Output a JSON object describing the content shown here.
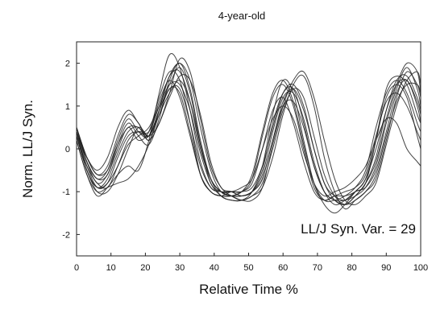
{
  "chart_data": {
    "type": "line",
    "title": "4-year-old",
    "xlabel": "Relative Time %",
    "ylabel": "Norm. LL/J Syn.",
    "xlim": [
      0,
      100
    ],
    "ylim": [
      -2.5,
      2.5
    ],
    "xticks": [
      0,
      10,
      20,
      30,
      40,
      50,
      60,
      70,
      80,
      90,
      100
    ],
    "yticks": [
      -2,
      -1,
      0,
      1,
      2
    ],
    "annotation": "LL/J Syn. Var. = 29",
    "grid": false,
    "line_color": "#222222",
    "series": [
      {
        "x": [
          0,
          3,
          6,
          9,
          12,
          15,
          18,
          21,
          24,
          27,
          30,
          33,
          36,
          39,
          42,
          45,
          48,
          51,
          54,
          57,
          60,
          63,
          66,
          69,
          72,
          75,
          78,
          81,
          84,
          87,
          90,
          93,
          96,
          99,
          100
        ],
        "y": [
          0.5,
          -0.3,
          -0.8,
          -0.6,
          0.0,
          0.5,
          0.2,
          0.4,
          1.2,
          1.8,
          1.6,
          0.6,
          -0.6,
          -1.0,
          -1.1,
          -1.0,
          -1.0,
          -0.7,
          0.3,
          1.2,
          1.5,
          1.0,
          0.0,
          -0.9,
          -1.2,
          -1.1,
          -1.1,
          -1.0,
          -0.8,
          0.2,
          1.4,
          1.7,
          1.5,
          0.8,
          0.6
        ]
      },
      {
        "x": [
          0,
          3,
          6,
          9,
          12,
          15,
          18,
          21,
          24,
          27,
          30,
          33,
          36,
          39,
          42,
          45,
          48,
          51,
          54,
          57,
          60,
          63,
          66,
          69,
          72,
          75,
          78,
          81,
          84,
          87,
          90,
          93,
          96,
          99,
          100
        ],
        "y": [
          0.4,
          -0.4,
          -0.9,
          -0.8,
          -0.2,
          0.3,
          0.4,
          0.3,
          0.9,
          1.5,
          1.9,
          1.3,
          0.1,
          -0.8,
          -1.0,
          -1.1,
          -1.1,
          -1.0,
          -0.5,
          0.6,
          1.3,
          1.4,
          0.6,
          -0.4,
          -1.0,
          -1.2,
          -1.3,
          -1.1,
          -0.8,
          -0.2,
          0.9,
          1.6,
          1.7,
          1.2,
          0.9
        ]
      },
      {
        "x": [
          0,
          3,
          6,
          9,
          12,
          15,
          18,
          21,
          24,
          27,
          30,
          33,
          36,
          39,
          42,
          45,
          48,
          51,
          54,
          57,
          60,
          63,
          66,
          69,
          72,
          75,
          78,
          81,
          84,
          87,
          90,
          93,
          96,
          99,
          100
        ],
        "y": [
          0.3,
          -0.5,
          -1.0,
          -1.0,
          -0.6,
          0.0,
          0.5,
          0.3,
          0.6,
          1.3,
          2.1,
          1.8,
          0.7,
          -0.4,
          -0.9,
          -1.1,
          -1.2,
          -1.1,
          -0.9,
          -0.2,
          0.8,
          1.5,
          1.7,
          1.0,
          -0.2,
          -1.0,
          -1.4,
          -1.2,
          -1.0,
          -0.7,
          0.2,
          1.2,
          1.8,
          1.5,
          1.2
        ]
      },
      {
        "x": [
          0,
          3,
          6,
          9,
          12,
          15,
          18,
          21,
          24,
          27,
          30,
          33,
          36,
          39,
          42,
          45,
          48,
          51,
          54,
          57,
          60,
          63,
          66,
          69,
          72,
          75,
          78,
          81,
          84,
          87,
          90,
          93,
          96,
          99,
          100
        ],
        "y": [
          0.5,
          -0.2,
          -0.6,
          -0.4,
          0.3,
          0.8,
          0.6,
          0.2,
          0.8,
          1.4,
          1.3,
          0.4,
          -0.6,
          -1.0,
          -1.1,
          -1.1,
          -1.0,
          -0.8,
          0.0,
          0.9,
          1.2,
          0.6,
          -0.3,
          -1.0,
          -1.2,
          -1.1,
          -1.0,
          -0.9,
          -0.6,
          0.3,
          1.1,
          1.3,
          1.0,
          0.4,
          0.2
        ]
      },
      {
        "x": [
          0,
          3,
          6,
          9,
          12,
          15,
          18,
          21,
          24,
          27,
          30,
          33,
          36,
          39,
          42,
          45,
          48,
          51,
          54,
          57,
          60,
          63,
          66,
          69,
          72,
          75,
          78,
          81,
          84,
          87,
          90,
          93,
          96,
          99,
          100
        ],
        "y": [
          0.2,
          -0.6,
          -1.1,
          -0.9,
          -0.6,
          -0.4,
          -0.5,
          0.2,
          1.3,
          2.2,
          1.9,
          0.9,
          -0.3,
          -0.9,
          -1.0,
          -1.0,
          -1.1,
          -1.0,
          -0.6,
          0.4,
          1.2,
          1.3,
          0.7,
          -0.3,
          -1.0,
          -1.3,
          -1.2,
          -1.0,
          -0.9,
          -0.5,
          0.4,
          1.3,
          1.6,
          1.0,
          0.6
        ]
      },
      {
        "x": [
          0,
          3,
          6,
          9,
          12,
          15,
          18,
          21,
          24,
          27,
          30,
          33,
          36,
          39,
          42,
          45,
          48,
          51,
          54,
          57,
          60,
          63,
          66,
          69,
          72,
          75,
          78,
          81,
          84,
          87,
          90,
          93,
          96,
          99,
          100
        ],
        "y": [
          0.4,
          -0.3,
          -0.7,
          -0.6,
          0.1,
          0.6,
          0.3,
          0.1,
          0.7,
          1.6,
          2.0,
          1.4,
          0.2,
          -0.7,
          -1.1,
          -1.2,
          -1.2,
          -1.0,
          -0.4,
          0.8,
          1.6,
          1.3,
          0.2,
          -0.8,
          -1.3,
          -1.5,
          -1.3,
          -1.0,
          -0.7,
          0.2,
          1.2,
          1.5,
          1.2,
          0.3,
          0.0
        ]
      },
      {
        "x": [
          0,
          3,
          6,
          9,
          12,
          15,
          18,
          21,
          24,
          27,
          30,
          33,
          36,
          39,
          42,
          45,
          48,
          51,
          54,
          57,
          60,
          63,
          66,
          69,
          72,
          75,
          78,
          81,
          84,
          87,
          90,
          93,
          96,
          99,
          100
        ],
        "y": [
          0.3,
          -0.4,
          -0.8,
          -0.9,
          -0.4,
          0.2,
          0.4,
          0.4,
          1.0,
          1.7,
          1.8,
          1.1,
          0.0,
          -0.7,
          -1.0,
          -1.1,
          -1.2,
          -1.2,
          -0.9,
          0.1,
          1.0,
          1.6,
          1.8,
          1.2,
          0.2,
          -0.7,
          -1.2,
          -1.3,
          -1.1,
          -0.8,
          0.1,
          1.0,
          1.6,
          1.8,
          1.5
        ]
      },
      {
        "x": [
          0,
          3,
          6,
          9,
          12,
          15,
          18,
          21,
          24,
          27,
          30,
          33,
          36,
          39,
          42,
          45,
          48,
          51,
          54,
          57,
          60,
          63,
          66,
          69,
          72,
          75,
          78,
          81,
          84,
          87,
          90,
          93,
          96,
          99,
          100
        ],
        "y": [
          0.4,
          -0.5,
          -0.9,
          -0.7,
          -0.1,
          0.4,
          0.5,
          0.2,
          0.6,
          1.2,
          1.7,
          1.6,
          0.8,
          -0.3,
          -0.9,
          -1.0,
          -1.1,
          -1.0,
          -0.7,
          0.2,
          1.0,
          1.1,
          0.5,
          -0.4,
          -1.0,
          -1.2,
          -1.2,
          -1.1,
          -0.9,
          -0.4,
          0.6,
          1.4,
          1.9,
          1.4,
          1.0
        ]
      },
      {
        "x": [
          0,
          3,
          6,
          9,
          12,
          15,
          18,
          21,
          24,
          27,
          30,
          33,
          36,
          39,
          42,
          45,
          48,
          51,
          54,
          57,
          60,
          63,
          66,
          69,
          72,
          75,
          78,
          81,
          84,
          87,
          90,
          93,
          96,
          99,
          100
        ],
        "y": [
          0.5,
          -0.3,
          -0.7,
          -0.5,
          0.2,
          0.7,
          0.4,
          0.3,
          1.1,
          1.6,
          1.2,
          0.3,
          -0.6,
          -1.0,
          -1.1,
          -1.1,
          -1.0,
          -0.6,
          0.4,
          1.3,
          1.6,
          1.1,
          0.1,
          -0.8,
          -1.2,
          -1.2,
          -1.1,
          -0.9,
          -0.5,
          0.5,
          1.3,
          1.6,
          1.3,
          0.6,
          0.4
        ]
      },
      {
        "x": [
          0,
          3,
          6,
          9,
          12,
          15,
          18,
          21,
          24,
          27,
          30,
          33,
          36,
          39,
          42,
          45,
          48,
          51,
          54,
          57,
          60,
          63,
          66,
          69,
          72,
          75,
          78,
          81,
          84,
          87,
          90,
          93,
          96,
          99,
          100
        ],
        "y": [
          0.3,
          -0.5,
          -0.9,
          -0.8,
          -0.4,
          0.1,
          0.3,
          0.5,
          1.0,
          1.5,
          1.5,
          0.9,
          -0.1,
          -0.8,
          -1.1,
          -1.2,
          -1.2,
          -1.1,
          -0.8,
          0.0,
          0.9,
          1.4,
          1.2,
          0.3,
          -0.6,
          -1.1,
          -1.3,
          -1.2,
          -1.0,
          -0.6,
          0.3,
          1.1,
          1.5,
          1.5,
          1.3
        ]
      },
      {
        "x": [
          0,
          3,
          6,
          9,
          12,
          15,
          18,
          21,
          24,
          27,
          30,
          33,
          36,
          39,
          42,
          45,
          48,
          51,
          54,
          57,
          60,
          63,
          66,
          69,
          72,
          75,
          78,
          81,
          84,
          87,
          90,
          93,
          96,
          99,
          100
        ],
        "y": [
          0.4,
          -0.2,
          -0.5,
          -0.2,
          0.5,
          0.9,
          0.6,
          0.3,
          0.9,
          1.4,
          1.4,
          0.6,
          -0.4,
          -0.9,
          -1.0,
          -1.0,
          -0.9,
          -0.7,
          0.0,
          0.7,
          1.0,
          0.7,
          -0.1,
          -0.8,
          -1.1,
          -1.0,
          -0.9,
          -0.7,
          -0.4,
          0.2,
          0.7,
          0.6,
          0.0,
          -0.3,
          -0.4
        ]
      },
      {
        "x": [
          0,
          3,
          6,
          9,
          12,
          15,
          18,
          21,
          24,
          27,
          30,
          33,
          36,
          39,
          42,
          45,
          48,
          51,
          54,
          57,
          60,
          63,
          66,
          69,
          72,
          75,
          78,
          81,
          84,
          87,
          90,
          93,
          96,
          99,
          100
        ],
        "y": [
          0.2,
          -0.6,
          -1.0,
          -0.9,
          -0.8,
          -0.7,
          -0.4,
          0.1,
          0.9,
          1.7,
          2.0,
          1.6,
          0.5,
          -0.5,
          -1.0,
          -1.1,
          -1.1,
          -1.0,
          -0.7,
          0.2,
          1.1,
          1.4,
          0.9,
          0.0,
          -0.8,
          -1.2,
          -1.3,
          -1.1,
          -0.8,
          -0.3,
          0.7,
          1.5,
          2.0,
          1.8,
          1.3
        ]
      },
      {
        "x": [
          0,
          3,
          6,
          9,
          12,
          15,
          18,
          21,
          24,
          27,
          30,
          33,
          36,
          39,
          42,
          45,
          48,
          51,
          54,
          57,
          60,
          63,
          66,
          69,
          72,
          75,
          78,
          81,
          84,
          87,
          90,
          93,
          96,
          99,
          100
        ],
        "y": [
          0.5,
          -0.2,
          -0.6,
          -0.5,
          0.1,
          0.5,
          0.5,
          0.3,
          0.8,
          1.3,
          1.6,
          1.1,
          0.1,
          -0.7,
          -1.0,
          -1.0,
          -1.0,
          -0.9,
          -0.4,
          0.5,
          1.3,
          1.5,
          1.0,
          0.0,
          -0.8,
          -1.1,
          -1.2,
          -1.0,
          -0.7,
          0.0,
          0.9,
          1.5,
          1.6,
          1.1,
          0.8
        ]
      }
    ]
  }
}
